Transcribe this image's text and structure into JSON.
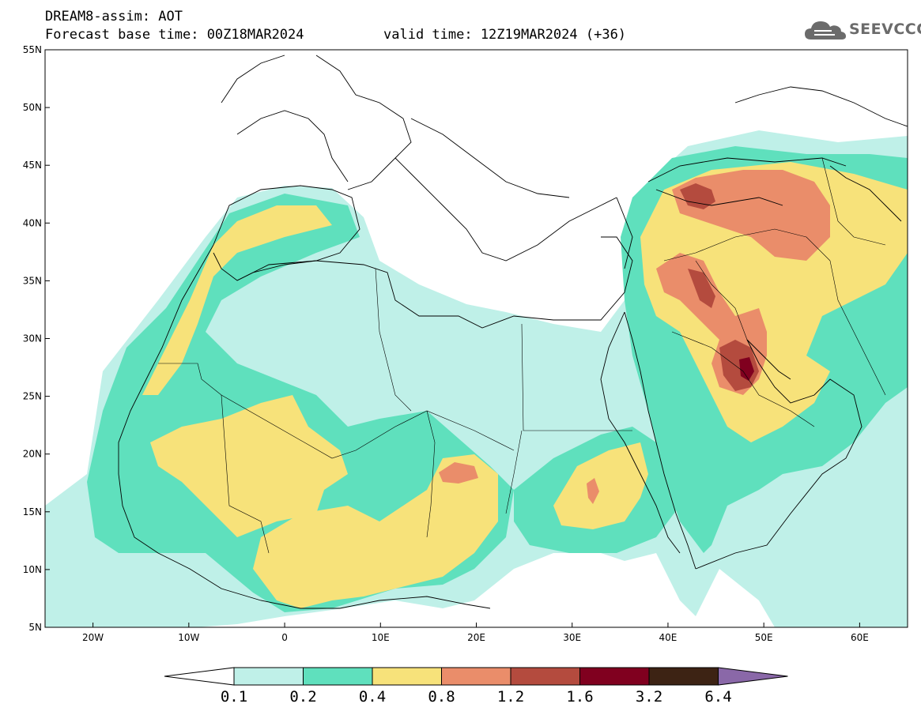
{
  "header": {
    "title": "DREAM8-assim: AOT",
    "base_time": "Forecast base time: 00Z18MAR2024",
    "valid_time": "valid time: 12Z19MAR2024 (+36)"
  },
  "logo": {
    "text": "SEEVCCC",
    "icon": "cloud-icon"
  },
  "map": {
    "lat_labels": [
      "55N",
      "50N",
      "45N",
      "40N",
      "35N",
      "30N",
      "25N",
      "20N",
      "15N",
      "10N",
      "5N"
    ],
    "lon_labels": [
      "20W",
      "10W",
      "0",
      "10E",
      "20E",
      "30E",
      "40E",
      "50E",
      "60E"
    ],
    "lon_range": [
      -25,
      65
    ],
    "lat_range": [
      5,
      55
    ]
  },
  "colorbar": {
    "labels": [
      "0.1",
      "0.2",
      "0.4",
      "0.8",
      "1.2",
      "1.6",
      "3.2",
      "6.4"
    ],
    "colors": [
      "#ffffff",
      "#bff0e8",
      "#5fe0bd",
      "#f7e27a",
      "#ea8d6a",
      "#b44b3e",
      "#80001f",
      "#3d2314",
      "#8a68a8"
    ]
  }
}
